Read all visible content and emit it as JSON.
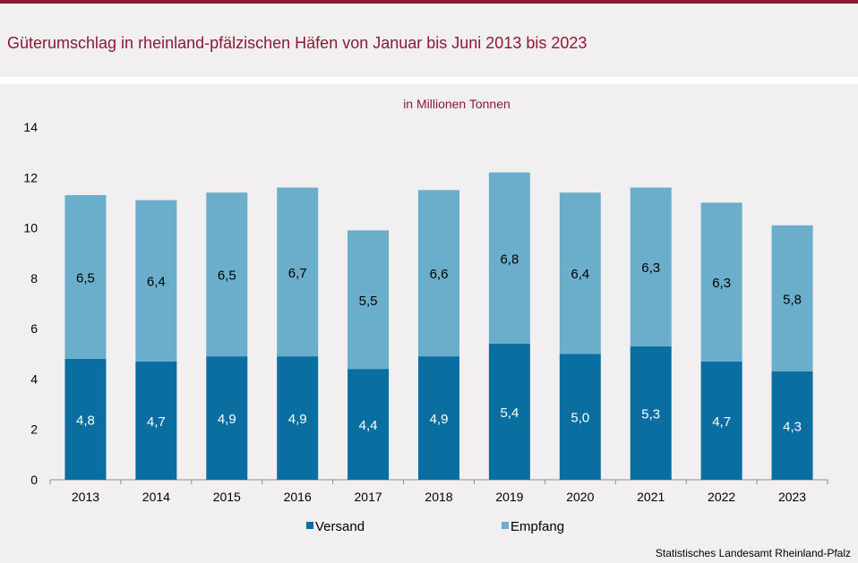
{
  "title": "Güterumschlag in rheinland-pfälzischen Häfen von Januar bis Juni 2013 bis 2023",
  "source": "Statistisches Landesamt Rheinland-Pfalz",
  "colors": {
    "accent": "#8b1a35",
    "background": "#f1efef",
    "versand": "#0a6fa0",
    "empfang": "#6aaecb"
  },
  "chart_data": {
    "type": "bar",
    "stacked": true,
    "subtitle": "in Millionen Tonnen",
    "categories": [
      "2013",
      "2014",
      "2015",
      "2016",
      "2017",
      "2018",
      "2019",
      "2020",
      "2021",
      "2022",
      "2023"
    ],
    "series": [
      {
        "name": "Versand",
        "color": "#0a6fa0",
        "label_color": "#ffffff",
        "values": [
          4.8,
          4.7,
          4.9,
          4.9,
          4.4,
          4.9,
          5.4,
          5.0,
          5.3,
          4.7,
          4.3
        ],
        "labels": [
          "4,8",
          "4,7",
          "4,9",
          "4,9",
          "4,4",
          "4,9",
          "5,4",
          "5,0",
          "5,3",
          "4,7",
          "4,3"
        ]
      },
      {
        "name": "Empfang",
        "color": "#6aaecb",
        "label_color": "#000000",
        "values": [
          6.5,
          6.4,
          6.5,
          6.7,
          5.5,
          6.6,
          6.8,
          6.4,
          6.3,
          6.3,
          5.8
        ],
        "labels": [
          "6,5",
          "6,4",
          "6,5",
          "6,7",
          "5,5",
          "6,6",
          "6,8",
          "6,4",
          "6,3",
          "6,3",
          "5,8"
        ]
      }
    ],
    "ylim": [
      0,
      14
    ],
    "yticks": [
      "0",
      "2",
      "4",
      "6",
      "8",
      "10",
      "12",
      "14"
    ],
    "grid": false,
    "legend": "bottom"
  }
}
